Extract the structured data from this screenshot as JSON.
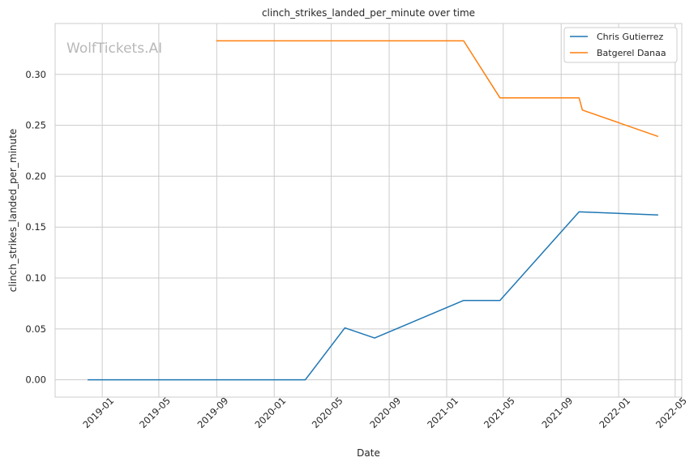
{
  "watermark": "WolfTickets.AI",
  "colors": {
    "grid": "#cccccc",
    "axes_edge": "#cccccc",
    "text": "#262626"
  },
  "chart_data": {
    "type": "line",
    "title": "clinch_strikes_landed_per_minute over time",
    "xlabel": "Date",
    "ylabel": "clinch_strikes_landed_per_minute",
    "xlim": [
      "2018-09-23",
      "2022-05-15"
    ],
    "ylim": [
      -0.017,
      0.35
    ],
    "x_ticks": [
      "2019-01-01",
      "2019-05-01",
      "2019-09-01",
      "2020-01-01",
      "2020-05-01",
      "2020-09-01",
      "2021-01-01",
      "2021-05-01",
      "2021-09-01",
      "2022-01-01",
      "2022-05-01"
    ],
    "x_tick_labels": [
      "2019-01",
      "2019-05",
      "2019-09",
      "2020-01",
      "2020-05",
      "2020-09",
      "2021-01",
      "2021-05",
      "2021-09",
      "2022-01",
      "2022-05"
    ],
    "y_ticks": [
      0.0,
      0.05,
      0.1,
      0.15,
      0.2,
      0.25,
      0.3
    ],
    "y_tick_labels": [
      "0.00",
      "0.05",
      "0.10",
      "0.15",
      "0.20",
      "0.25",
      "0.30"
    ],
    "grid": true,
    "legend_position": "top-right",
    "series": [
      {
        "name": "Chris Gutierrez",
        "color": "#1f77b4",
        "points": [
          {
            "x": "2018-12-01",
            "y": 0.0
          },
          {
            "x": "2020-03-07",
            "y": 0.0
          },
          {
            "x": "2020-05-30",
            "y": 0.051
          },
          {
            "x": "2020-08-01",
            "y": 0.041
          },
          {
            "x": "2021-02-06",
            "y": 0.078
          },
          {
            "x": "2021-04-24",
            "y": 0.078
          },
          {
            "x": "2021-10-09",
            "y": 0.165
          },
          {
            "x": "2022-03-26",
            "y": 0.162
          }
        ]
      },
      {
        "name": "Batgerel Danaa",
        "color": "#ff7f0e",
        "points": [
          {
            "x": "2019-08-31",
            "y": 0.333
          },
          {
            "x": "2021-02-06",
            "y": 0.333
          },
          {
            "x": "2021-04-24",
            "y": 0.277
          },
          {
            "x": "2021-10-09",
            "y": 0.277
          },
          {
            "x": "2021-10-16",
            "y": 0.265
          },
          {
            "x": "2022-03-26",
            "y": 0.239
          }
        ]
      }
    ]
  }
}
